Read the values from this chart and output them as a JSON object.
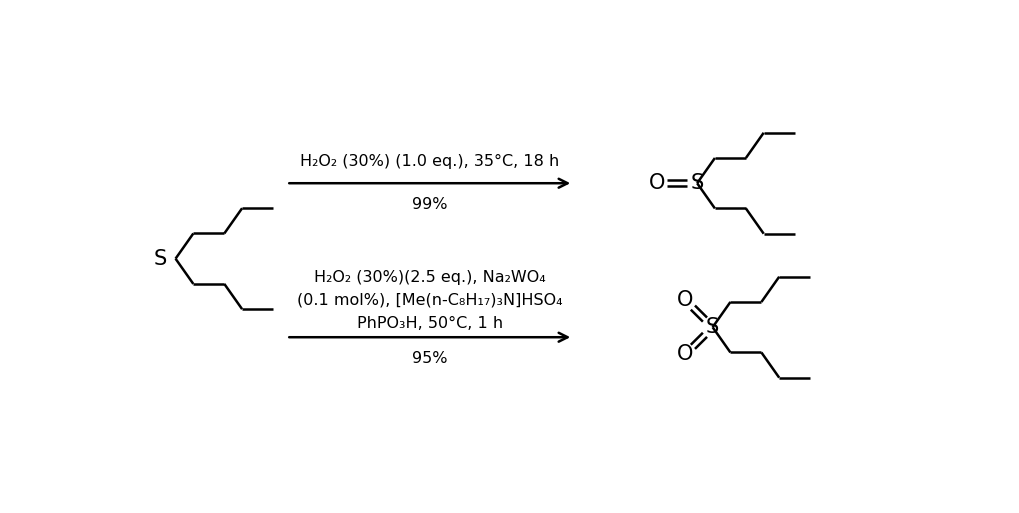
{
  "bg_color": "#ffffff",
  "line_color": "#000000",
  "line_width": 1.8,
  "figsize": [
    10.2,
    5.13
  ],
  "dpi": 100,
  "reaction1_label": "H₂O₂ (30%) (1.0 eq.), 35°C, 18 h",
  "reaction1_yield": "99%",
  "reaction2_line1": "H₂O₂ (30%)(2.5 eq.), Na₂WO₄",
  "reaction2_line2": "(0.1 mol%), [Me(n-C₈H₁₇)₃N]HSO₄",
  "reaction2_line3": "PhPO₃H, 50°C, 1 h",
  "reaction2_yield": "95%",
  "font_size": 11.5,
  "label_S": "S",
  "label_O": "O"
}
